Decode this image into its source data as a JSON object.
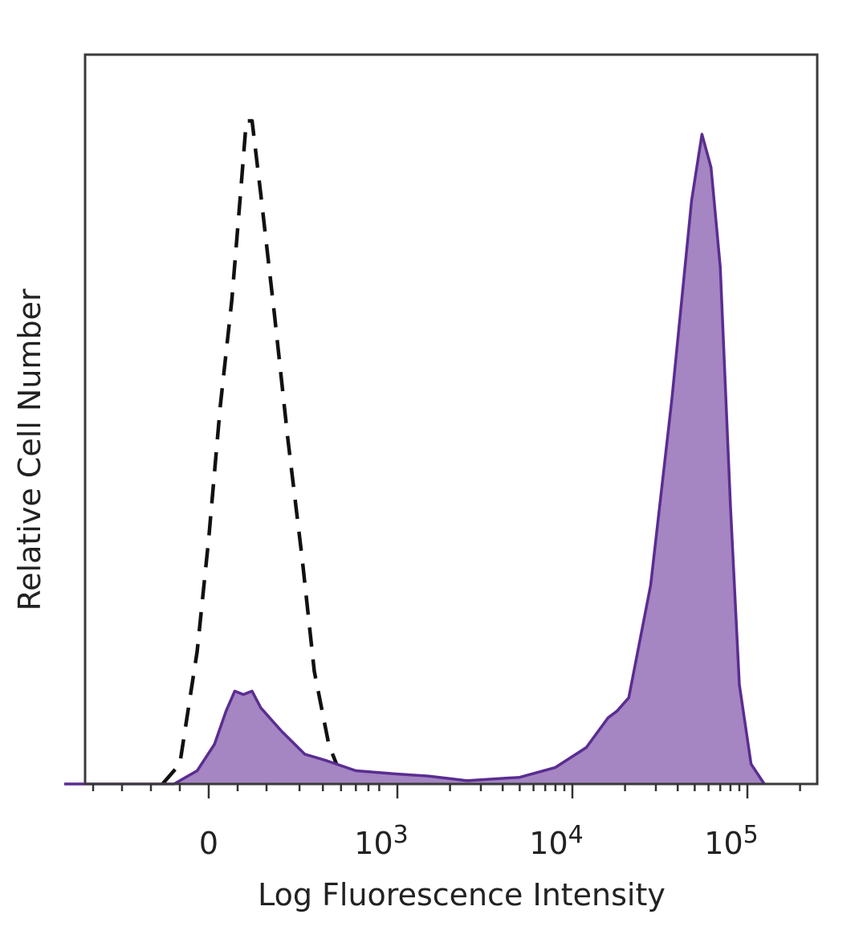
{
  "chart_data": {
    "type": "area",
    "xlabel": "Log Fluorescence Intensity",
    "ylabel": "Relative Cell Number",
    "x_scale": "biexponential",
    "x_ticks": [
      {
        "value": 0,
        "base": "0",
        "exp": ""
      },
      {
        "value": 1000,
        "base": "10",
        "exp": "3"
      },
      {
        "value": 10000,
        "base": "10",
        "exp": "4"
      },
      {
        "value": 100000,
        "base": "10",
        "exp": "5"
      }
    ],
    "xlim": [
      -500,
      250000
    ],
    "ylim": [
      0,
      1.1
    ],
    "grid": false,
    "legend": "none",
    "series": [
      {
        "style": "dashed",
        "color": "#111111",
        "fill": "none",
        "points": [
          [
            -160,
            0.0
          ],
          [
            -100,
            0.03
          ],
          [
            -40,
            0.2
          ],
          [
            0,
            0.37
          ],
          [
            40,
            0.57
          ],
          [
            80,
            0.73
          ],
          [
            110,
            0.89
          ],
          [
            130,
            1.0
          ],
          [
            150,
            1.0
          ],
          [
            180,
            0.89
          ],
          [
            220,
            0.71
          ],
          [
            260,
            0.52
          ],
          [
            310,
            0.34
          ],
          [
            360,
            0.17
          ],
          [
            430,
            0.06
          ],
          [
            520,
            0.0
          ]
        ]
      },
      {
        "style": "solid",
        "color": "#5a2d91",
        "fill": "#a585c2",
        "points": [
          [
            -500,
            0.0
          ],
          [
            -120,
            0.0
          ],
          [
            -40,
            0.02
          ],
          [
            20,
            0.06
          ],
          [
            60,
            0.11
          ],
          [
            90,
            0.14
          ],
          [
            120,
            0.135
          ],
          [
            150,
            0.14
          ],
          [
            180,
            0.115
          ],
          [
            240,
            0.08
          ],
          [
            320,
            0.045
          ],
          [
            420,
            0.035
          ],
          [
            600,
            0.02
          ],
          [
            1000,
            0.015
          ],
          [
            1500,
            0.012
          ],
          [
            2500,
            0.005
          ],
          [
            5000,
            0.01
          ],
          [
            8000,
            0.025
          ],
          [
            12000,
            0.055
          ],
          [
            16000,
            0.1
          ],
          [
            18000,
            0.11
          ],
          [
            21000,
            0.13
          ],
          [
            28000,
            0.3
          ],
          [
            37000,
            0.58
          ],
          [
            48000,
            0.88
          ],
          [
            55000,
            0.98
          ],
          [
            62000,
            0.93
          ],
          [
            70000,
            0.78
          ],
          [
            80000,
            0.42
          ],
          [
            90000,
            0.15
          ],
          [
            105000,
            0.03
          ],
          [
            125000,
            0.0
          ]
        ]
      }
    ]
  }
}
